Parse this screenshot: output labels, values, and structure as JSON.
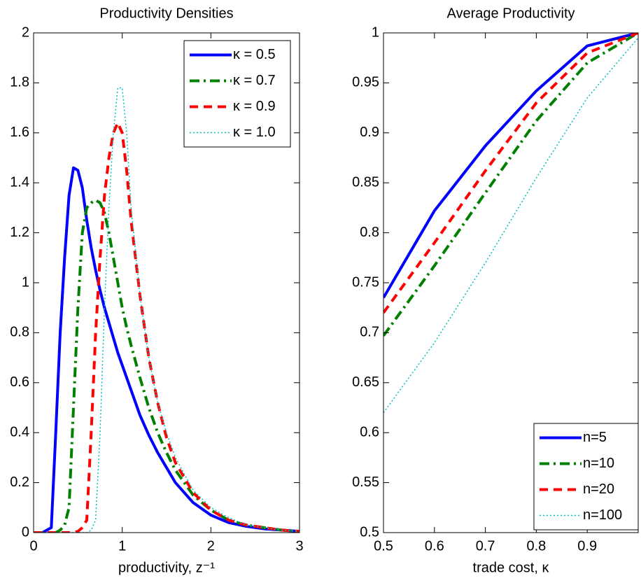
{
  "chart_data": [
    {
      "type": "line",
      "title": "Productivity Densities",
      "x_label": "productivity, z⁻¹",
      "x": [
        0,
        0.1,
        0.2,
        0.25,
        0.3,
        0.35,
        0.4,
        0.45,
        0.5,
        0.55,
        0.6,
        0.65,
        0.7,
        0.75,
        0.8,
        0.85,
        0.9,
        0.95,
        1.0,
        1.05,
        1.1,
        1.2,
        1.3,
        1.4,
        1.5,
        1.6,
        1.8,
        2.0,
        2.2,
        2.4,
        2.6,
        2.8,
        3.0
      ],
      "series": [
        {
          "name": "κ = 0.5",
          "color": "#0000ff",
          "linestyle": "-",
          "values": [
            0,
            0,
            0.02,
            0.4,
            0.8,
            1.1,
            1.35,
            1.46,
            1.45,
            1.38,
            1.25,
            1.14,
            1.05,
            0.97,
            0.9,
            0.84,
            0.78,
            0.72,
            0.67,
            0.62,
            0.57,
            0.47,
            0.39,
            0.32,
            0.26,
            0.2,
            0.12,
            0.07,
            0.04,
            0.025,
            0.015,
            0.01,
            0.005
          ]
        },
        {
          "name": "κ = 0.7",
          "color": "#008000",
          "linestyle": "-.",
          "values": [
            0,
            0,
            0,
            0,
            0.01,
            0.03,
            0.1,
            0.5,
            0.9,
            1.2,
            1.3,
            1.32,
            1.33,
            1.32,
            1.28,
            1.2,
            1.1,
            1.0,
            0.9,
            0.82,
            0.75,
            0.62,
            0.5,
            0.4,
            0.32,
            0.25,
            0.15,
            0.09,
            0.05,
            0.03,
            0.02,
            0.01,
            0.005
          ]
        },
        {
          "name": "κ = 0.9",
          "color": "#ff0000",
          "linestyle": "--",
          "values": [
            0,
            0,
            0,
            0,
            0,
            0,
            0,
            0,
            0.005,
            0.02,
            0.05,
            0.4,
            0.8,
            1.1,
            1.35,
            1.5,
            1.6,
            1.64,
            1.6,
            1.45,
            1.25,
            0.95,
            0.7,
            0.52,
            0.38,
            0.28,
            0.16,
            0.09,
            0.05,
            0.03,
            0.02,
            0.01,
            0.005
          ]
        },
        {
          "name": "κ = 1.0",
          "color": "#00bfbf",
          "linestyle": ":",
          "values": [
            0,
            0,
            0,
            0,
            0,
            0,
            0,
            0,
            0,
            0,
            0,
            0.01,
            0.05,
            0.4,
            0.9,
            1.3,
            1.6,
            1.78,
            1.78,
            1.6,
            1.3,
            0.95,
            0.7,
            0.52,
            0.4,
            0.3,
            0.17,
            0.1,
            0.06,
            0.03,
            0.02,
            0.01,
            0.005
          ]
        }
      ],
      "xlim": [
        0,
        3
      ],
      "xticks": [
        0,
        1,
        2,
        3
      ],
      "ylim": [
        0,
        2
      ],
      "yticks": [
        0,
        0.2,
        0.4,
        0.6,
        0.8,
        1,
        1.2,
        1.4,
        1.6,
        1.8,
        2
      ],
      "legend": "northeast"
    },
    {
      "type": "line",
      "title": "Average Productivity",
      "x_label": "trade cost, κ",
      "x": [
        0.5,
        0.6,
        0.7,
        0.8,
        0.9,
        1.0
      ],
      "series": [
        {
          "name": "n=5",
          "color": "#0000ff",
          "linestyle": "-",
          "values": [
            0.735,
            0.822,
            0.887,
            0.942,
            0.987,
            1.0
          ]
        },
        {
          "name": "n=10",
          "color": "#008000",
          "linestyle": "-.",
          "values": [
            0.697,
            0.767,
            0.84,
            0.912,
            0.97,
            1.0
          ]
        },
        {
          "name": "n=20",
          "color": "#ff0000",
          "linestyle": "--",
          "values": [
            0.72,
            0.79,
            0.862,
            0.93,
            0.98,
            1.0
          ]
        },
        {
          "name": "n=100",
          "color": "#00bfbf",
          "linestyle": ":",
          "values": [
            0.62,
            0.69,
            0.77,
            0.855,
            0.935,
            0.995
          ]
        }
      ],
      "xlim": [
        0.5,
        1
      ],
      "xticks": [
        0.5,
        0.6,
        0.7,
        0.8,
        0.9
      ],
      "ylim": [
        0.5,
        1
      ],
      "yticks": [
        0.5,
        0.55,
        0.6,
        0.65,
        0.7,
        0.75,
        0.8,
        0.85,
        0.9,
        0.95,
        1
      ],
      "legend": "southeast"
    }
  ]
}
